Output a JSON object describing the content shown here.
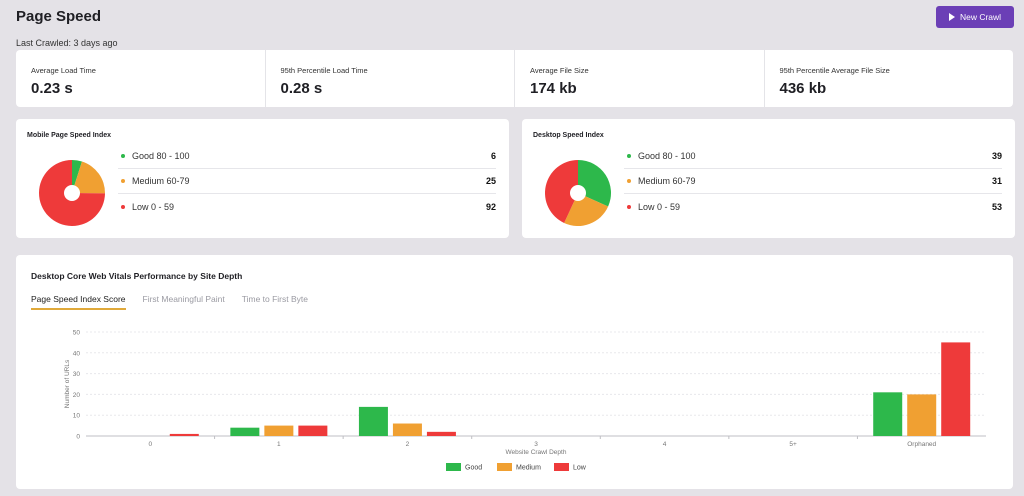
{
  "page": {
    "title": "Page Speed",
    "last_crawled": "Last Crawled: 3 days ago",
    "new_crawl_label": "New Crawl"
  },
  "stats": [
    {
      "label": "Average Load Time",
      "value": "0.23 s"
    },
    {
      "label": "95th Percentile Load Time",
      "value": "0.28 s"
    },
    {
      "label": "Average File Size",
      "value": "174 kb"
    },
    {
      "label": "95th Percentile Average File Size",
      "value": "436 kb"
    }
  ],
  "colors": {
    "good": "#2db84b",
    "medium": "#f0a032",
    "low": "#ee3a3a",
    "accent": "#6b3fb6",
    "tab_underline": "#e0a93a"
  },
  "mobile": {
    "title": "Mobile Page Speed Index",
    "rows": [
      {
        "label": "Good 80 - 100",
        "count": "6"
      },
      {
        "label": "Medium 60-79",
        "count": "25"
      },
      {
        "label": "Low 0 - 59",
        "count": "92"
      }
    ]
  },
  "desktop": {
    "title": "Desktop Speed Index",
    "rows": [
      {
        "label": "Good 80 - 100",
        "count": "39"
      },
      {
        "label": "Medium 60-79",
        "count": "31"
      },
      {
        "label": "Low 0 - 59",
        "count": "53"
      }
    ]
  },
  "vitals": {
    "title": "Desktop Core Web Vitals Performance by Site Depth",
    "tabs": [
      "Page Speed Index Score",
      "First Meaningful Paint",
      "Time to First Byte"
    ]
  },
  "chart_data": [
    {
      "type": "pie",
      "title": "Mobile Page Speed Index",
      "categories": [
        "Good 80 - 100",
        "Medium 60-79",
        "Low 0 - 59"
      ],
      "values": [
        6,
        25,
        92
      ]
    },
    {
      "type": "pie",
      "title": "Desktop Speed Index",
      "categories": [
        "Good 80 - 100",
        "Medium 60-79",
        "Low 0 - 59"
      ],
      "values": [
        39,
        31,
        53
      ]
    },
    {
      "type": "bar",
      "title": "",
      "xlabel": "Website Crawl Depth",
      "ylabel": "Number of URLs",
      "categories": [
        "0",
        "1",
        "2",
        "3",
        "4",
        "5+",
        "Orphaned"
      ],
      "ylim": [
        0,
        50
      ],
      "yticks": [
        "0",
        "10",
        "20",
        "30",
        "40",
        "50"
      ],
      "series": [
        {
          "name": "Good",
          "values": [
            0,
            4,
            14,
            0,
            0,
            0,
            21
          ]
        },
        {
          "name": "Medium",
          "values": [
            0,
            5,
            6,
            0,
            0,
            0,
            20
          ]
        },
        {
          "name": "Low",
          "values": [
            1,
            5,
            2,
            0,
            0,
            0,
            45
          ]
        }
      ],
      "grid": true,
      "legend": "bottom"
    }
  ]
}
